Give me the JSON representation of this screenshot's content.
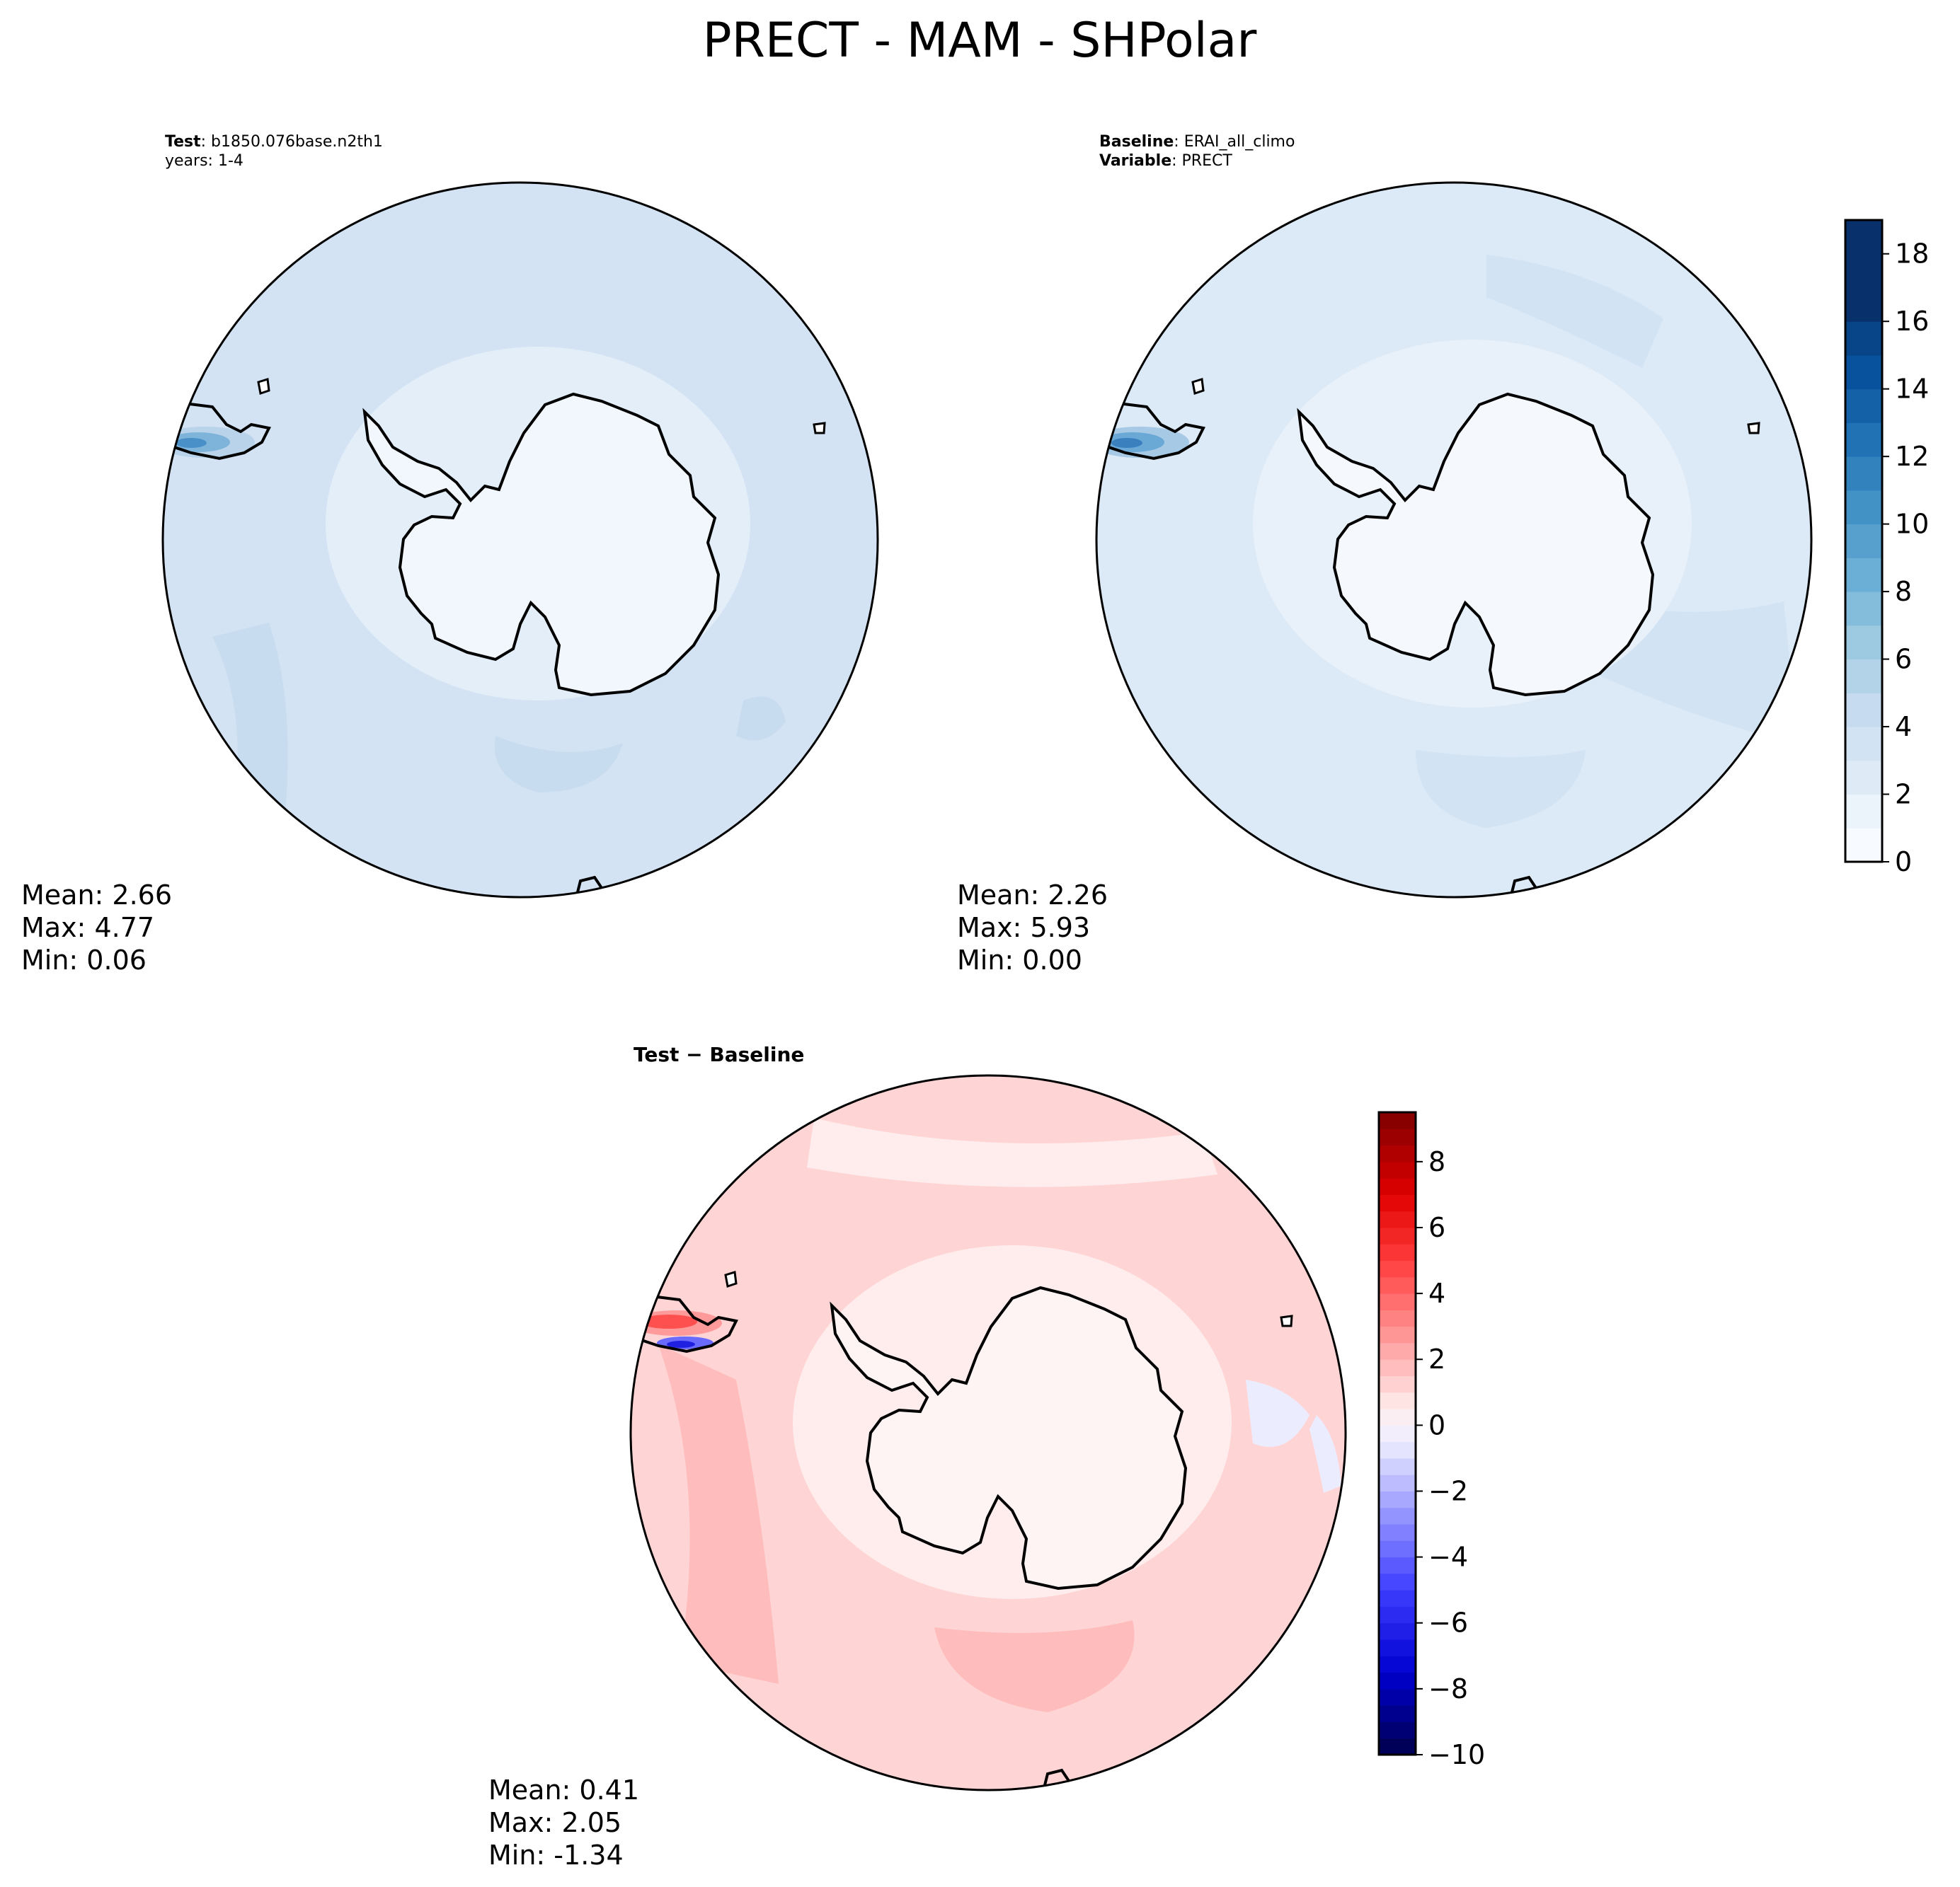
{
  "title": "PRECT - MAM - SHPolar",
  "panels": [
    {
      "id": "test",
      "header": [
        {
          "bold": "Test",
          "rest": ": b1850.076base.n2th1"
        },
        {
          "bold": "",
          "rest": "years: 1-4"
        }
      ],
      "stats": [
        "Mean:  2.66",
        "Max:  4.77",
        "Min:  0.06"
      ]
    },
    {
      "id": "baseline",
      "header": [
        {
          "bold": "Baseline",
          "rest": ": ERAI_all_climo"
        },
        {
          "bold": "Variable",
          "rest": ": PRECT"
        }
      ],
      "stats": [
        "Mean:  2.26",
        "Max:  5.93",
        "Min:  0.00"
      ]
    },
    {
      "id": "diff",
      "header": [
        {
          "bold": "Test − Baseline",
          "rest": ""
        }
      ],
      "stats": [
        "Mean:  0.41",
        "Max:  2.05",
        "Min: -1.34"
      ]
    }
  ],
  "colorbars": [
    {
      "id": "precip",
      "min": 0,
      "max": 19,
      "levels": [
        0,
        1,
        2,
        3,
        4,
        5,
        6,
        7,
        8,
        9,
        10,
        11,
        12,
        13,
        14,
        15,
        16,
        17,
        18,
        19
      ],
      "ticks": [
        0,
        2,
        4,
        6,
        8,
        10,
        12,
        14,
        16,
        18
      ],
      "tick_labels": [
        "0",
        "2",
        "4",
        "6",
        "8",
        "10",
        "12",
        "14",
        "16",
        "18"
      ],
      "colors": [
        "#f7fbff",
        "#ebf3fb",
        "#deebf7",
        "#d2e3f3",
        "#c6dbef",
        "#b3d3e8",
        "#9ecae1",
        "#84bcdb",
        "#6baed6",
        "#57a0ce",
        "#4292c6",
        "#3282be",
        "#2171b5",
        "#1461a8",
        "#08519c",
        "#084488",
        "#08306b",
        "#08306b",
        "#08306b"
      ]
    },
    {
      "id": "diff",
      "min": -10,
      "max": 9.5,
      "ticks": [
        -10,
        -8,
        -6,
        -4,
        -2,
        0,
        2,
        4,
        6,
        8
      ],
      "tick_labels": [
        "−10",
        "−8",
        "−6",
        "−4",
        "−2",
        "0",
        "2",
        "4",
        "6",
        "8"
      ],
      "stops": [
        {
          "v": -10,
          "c": "#00004c"
        },
        {
          "v": -7.5,
          "c": "#0000d0"
        },
        {
          "v": -5,
          "c": "#3d3dff"
        },
        {
          "v": -2.5,
          "c": "#9e9eff"
        },
        {
          "v": -0.5,
          "c": "#eeeeff"
        },
        {
          "v": 0.5,
          "c": "#ffeeee"
        },
        {
          "v": 2.5,
          "c": "#ffa0a0"
        },
        {
          "v": 5,
          "c": "#ff3d3d"
        },
        {
          "v": 7,
          "c": "#e00000"
        },
        {
          "v": 9.5,
          "c": "#7f0000"
        }
      ]
    }
  ],
  "map_colors": {
    "test_ocean": "#d3e3f3",
    "test_band": "#e3eef9",
    "test_land": "#f2f7fd",
    "test_patch": "#c8dcef",
    "base_ocean": "#dce9f6",
    "base_band": "#e8f1fa",
    "base_land": "#f5f9fe",
    "base_patch": "#d2e3f3",
    "peninsula_max": "#4a90c8",
    "diff_ocean": "#ffd4d4",
    "diff_band": "#ffecec",
    "diff_land": "#fff4f4",
    "diff_patch": "#ffbcbc",
    "diff_blue": "#ececff",
    "diff_pen_red": "#ff6e6e",
    "diff_pen_blue": "#3b3bff"
  }
}
